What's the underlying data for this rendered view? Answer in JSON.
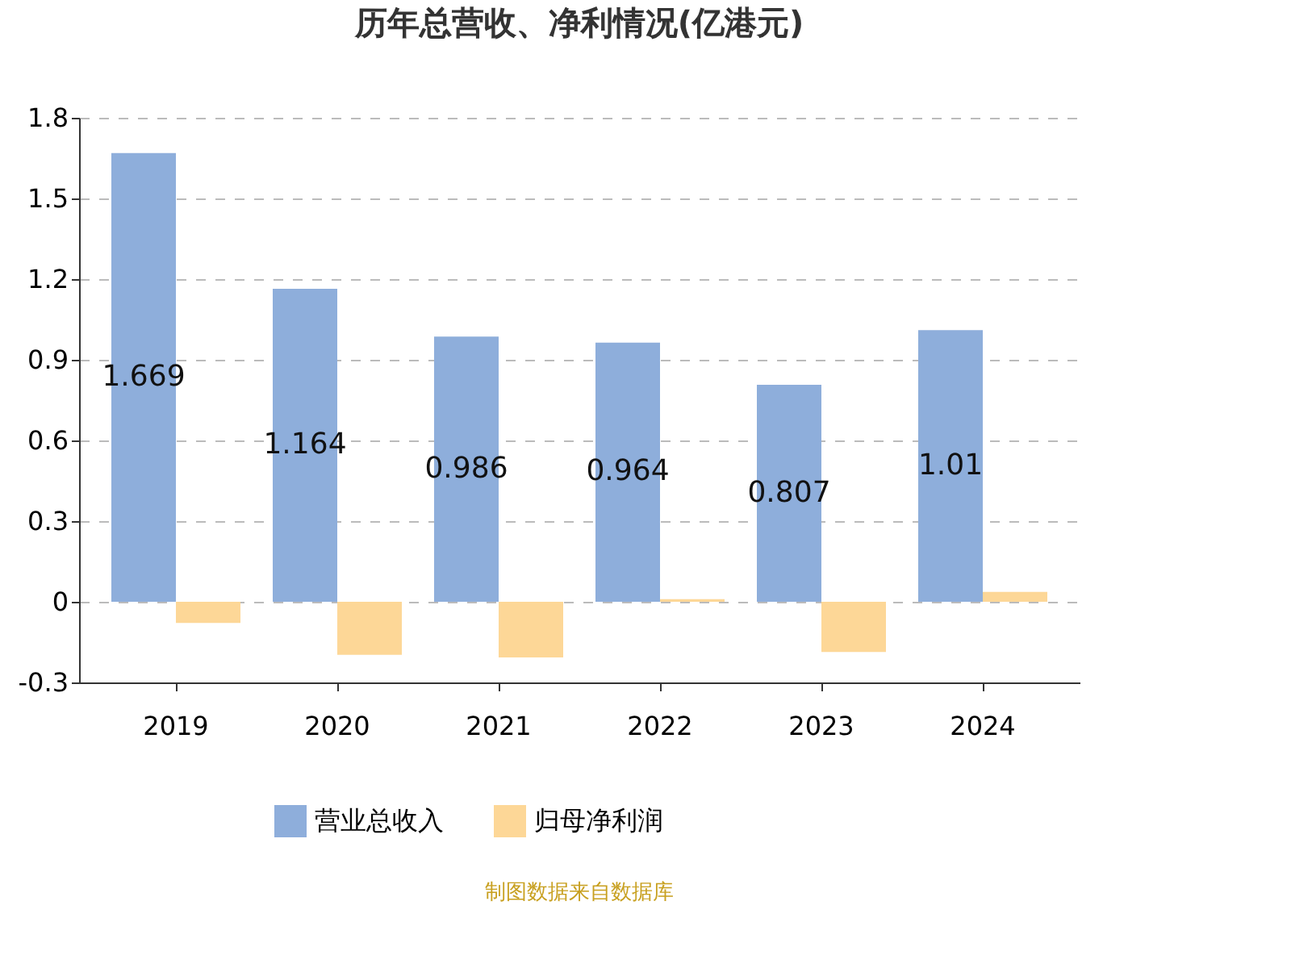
{
  "chart_data": {
    "type": "bar",
    "title": "历年总营收、净利情况(亿港元)",
    "categories": [
      "2019",
      "2020",
      "2021",
      "2022",
      "2023",
      "2024"
    ],
    "series": [
      {
        "name": "营业总收入",
        "color": "#8eaedb",
        "values": [
          1.669,
          1.164,
          0.986,
          0.964,
          0.807,
          1.01
        ],
        "value_labels": [
          "1.669",
          "1.164",
          "0.986",
          "0.964",
          "0.807",
          "1.01"
        ]
      },
      {
        "name": "归母净利润",
        "color": "#fdd797",
        "values": [
          -0.079,
          -0.197,
          -0.207,
          0.01,
          -0.187,
          0.037
        ]
      }
    ],
    "ylim": [
      -0.3,
      1.8
    ],
    "yticks": [
      -0.3,
      0,
      0.3,
      0.6,
      0.9,
      1.2,
      1.5,
      1.8
    ],
    "grid": "y",
    "legend": "bottom",
    "annotations": [
      "制图数据来自数据库"
    ]
  }
}
